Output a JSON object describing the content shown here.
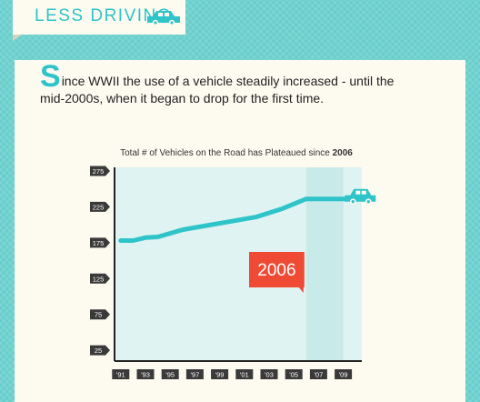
{
  "header": {
    "title": "LESS DRIVING",
    "icon": "car-icon"
  },
  "intro": {
    "dropcap": "S",
    "text": "ince WWII the use of a vehicle steadily increased - until the mid-2000s, when it began to drop for the first time."
  },
  "colors": {
    "background": "#6fd3cf",
    "card": "#fdfaf0",
    "accent": "#2ec4c9",
    "plot_area": "#dff3f2",
    "highlight_band": "#c8eae9",
    "callout": "#ef4a34",
    "tick_label_bg": "#3a3a3a"
  },
  "chart_data": {
    "type": "line",
    "title_prefix": "Total # of Vehicles on the Road has Plateaued since ",
    "title_emphasis": "2006",
    "xlabel": "",
    "ylabel": "",
    "x_tick_labels": [
      "'91",
      "'93",
      "'95",
      "'97",
      "'99",
      "'01",
      "'03",
      "'05",
      "'07",
      "'09"
    ],
    "y_tick_labels": [
      "275",
      "225",
      "175",
      "125",
      "75",
      "25"
    ],
    "y_ticks": [
      275,
      225,
      175,
      125,
      75,
      25
    ],
    "ylim": [
      10,
      280
    ],
    "xlim": [
      1990.5,
      2010.5
    ],
    "series": [
      {
        "x": [
          1991,
          1992,
          1993,
          1994,
          1996,
          1998,
          2000,
          2002,
          2004,
          2006,
          2007,
          2008,
          2009,
          2010.3
        ],
        "values": [
          178,
          178,
          182,
          183,
          193,
          199,
          205,
          211,
          222,
          236,
          236,
          236,
          236,
          236
        ]
      }
    ],
    "highlight_range": [
      2006,
      2009
    ],
    "callout": {
      "label": "2006"
    },
    "line_end_icon": "car-icon",
    "grid": false,
    "legend": "none"
  }
}
